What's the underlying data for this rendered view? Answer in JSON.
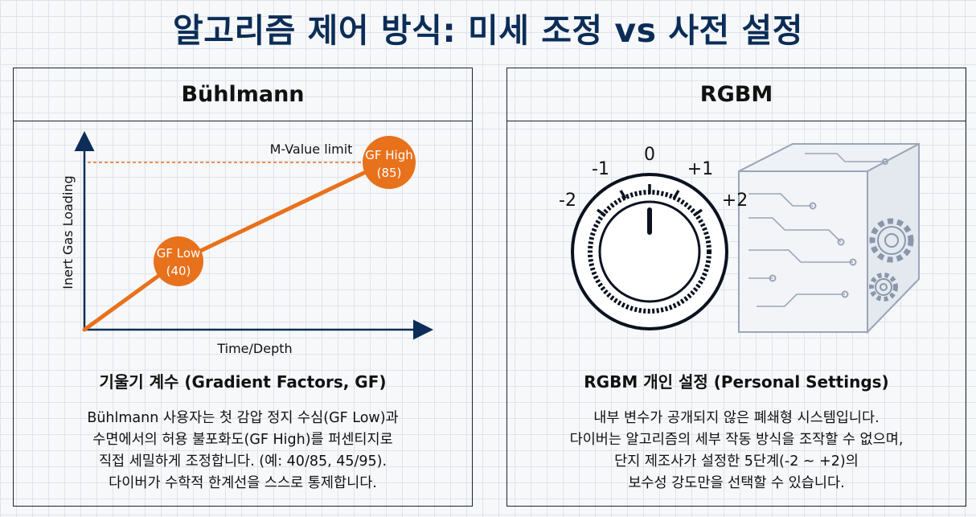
{
  "title": "알고리즘 제어 방식: 미세 조정 vs 사전 설정",
  "left": {
    "header": "Bühlmann",
    "chart": {
      "m_value_label": "M-Value limit",
      "gf_low_line1": "GF Low",
      "gf_low_line2": "(40)",
      "gf_high_line1": "GF High",
      "gf_high_line2": "(85)",
      "y_axis_label": "Inert Gas Loading",
      "x_axis_label": "Time/Depth"
    },
    "subtitle": "기울기 계수 (Gradient Factors, GF)",
    "desc": [
      "Bühlmann 사용자는 첫 감압 정지 수심(GF Low)과",
      "수면에서의 허용 불포화도(GF High)를 퍼센티지로",
      "직접 세밀하게 조정합니다. (예: 40/85, 45/95).",
      "다이버가 수학적 한계선을 스스로 통제합니다."
    ]
  },
  "right": {
    "header": "RGBM",
    "dial": {
      "label_m2": "-2",
      "label_m1": "-1",
      "label_0": "0",
      "label_p1": "+1",
      "label_p2": "+2"
    },
    "subtitle": "RGBM 개인 설정 (Personal Settings)",
    "desc": [
      "내부 변수가 공개되지 않은 폐쇄형 시스템입니다.",
      "다이버는 알고리즘의 세부 작동 방식을 조작할 수 없으며,",
      "단지 제조사가 설정한 5단계(-2 ~ +2)의",
      "보수성 강도만을 선택할 수 있습니다."
    ]
  },
  "colors": {
    "title": "#0b2d57",
    "accent_orange": "#e8711c",
    "ink": "#111111",
    "cube_line": "#9aa6b8"
  },
  "icons": [
    "conservatism-dial-icon",
    "locked-cube-icon",
    "gear-icon"
  ]
}
